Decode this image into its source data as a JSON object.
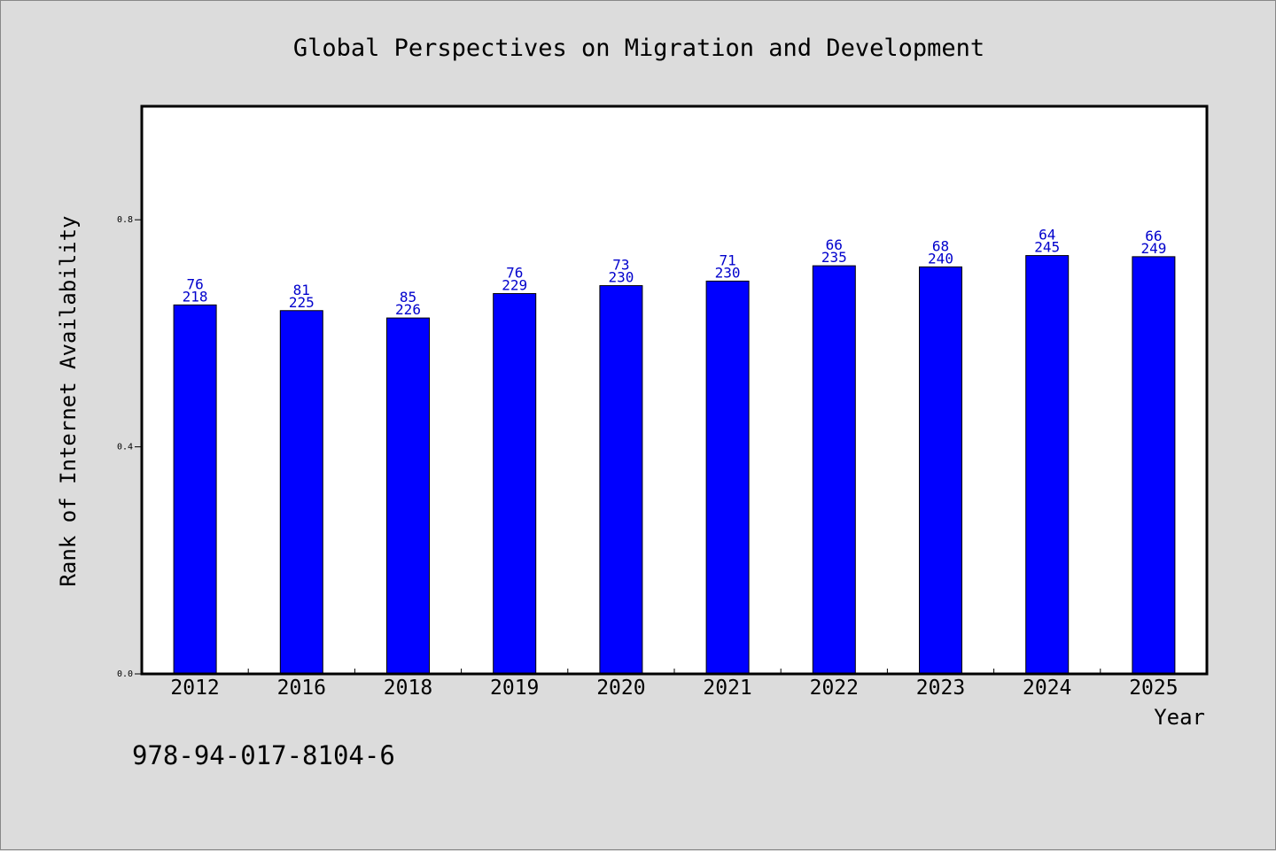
{
  "chart_data": {
    "type": "bar",
    "title": "Global Perspectives on Migration and Development",
    "xlabel": "Year",
    "ylabel": "Rank of Internet Availability",
    "categories": [
      "2012",
      "2016",
      "2018",
      "2019",
      "2020",
      "2021",
      "2022",
      "2023",
      "2024",
      "2025"
    ],
    "values": [
      0.65,
      0.64,
      0.627,
      0.67,
      0.684,
      0.692,
      0.719,
      0.717,
      0.737,
      0.735
    ],
    "bar_labels_top": [
      "76",
      "81",
      "85",
      "76",
      "73",
      "71",
      "66",
      "68",
      "64",
      "66"
    ],
    "bar_labels_bottom": [
      "218",
      "225",
      "226",
      "229",
      "230",
      "230",
      "235",
      "240",
      "245",
      "249"
    ],
    "ylim": [
      0,
      1.0
    ],
    "yticks": [
      0.0,
      0.4,
      0.8
    ],
    "ytick_labels": [
      "0.0",
      "0.4",
      "0.8"
    ],
    "grid": false,
    "bar_color": "#0000ff",
    "label_color": "#0000cc"
  },
  "footer": {
    "isbn": "978-94-017-8104-6"
  }
}
